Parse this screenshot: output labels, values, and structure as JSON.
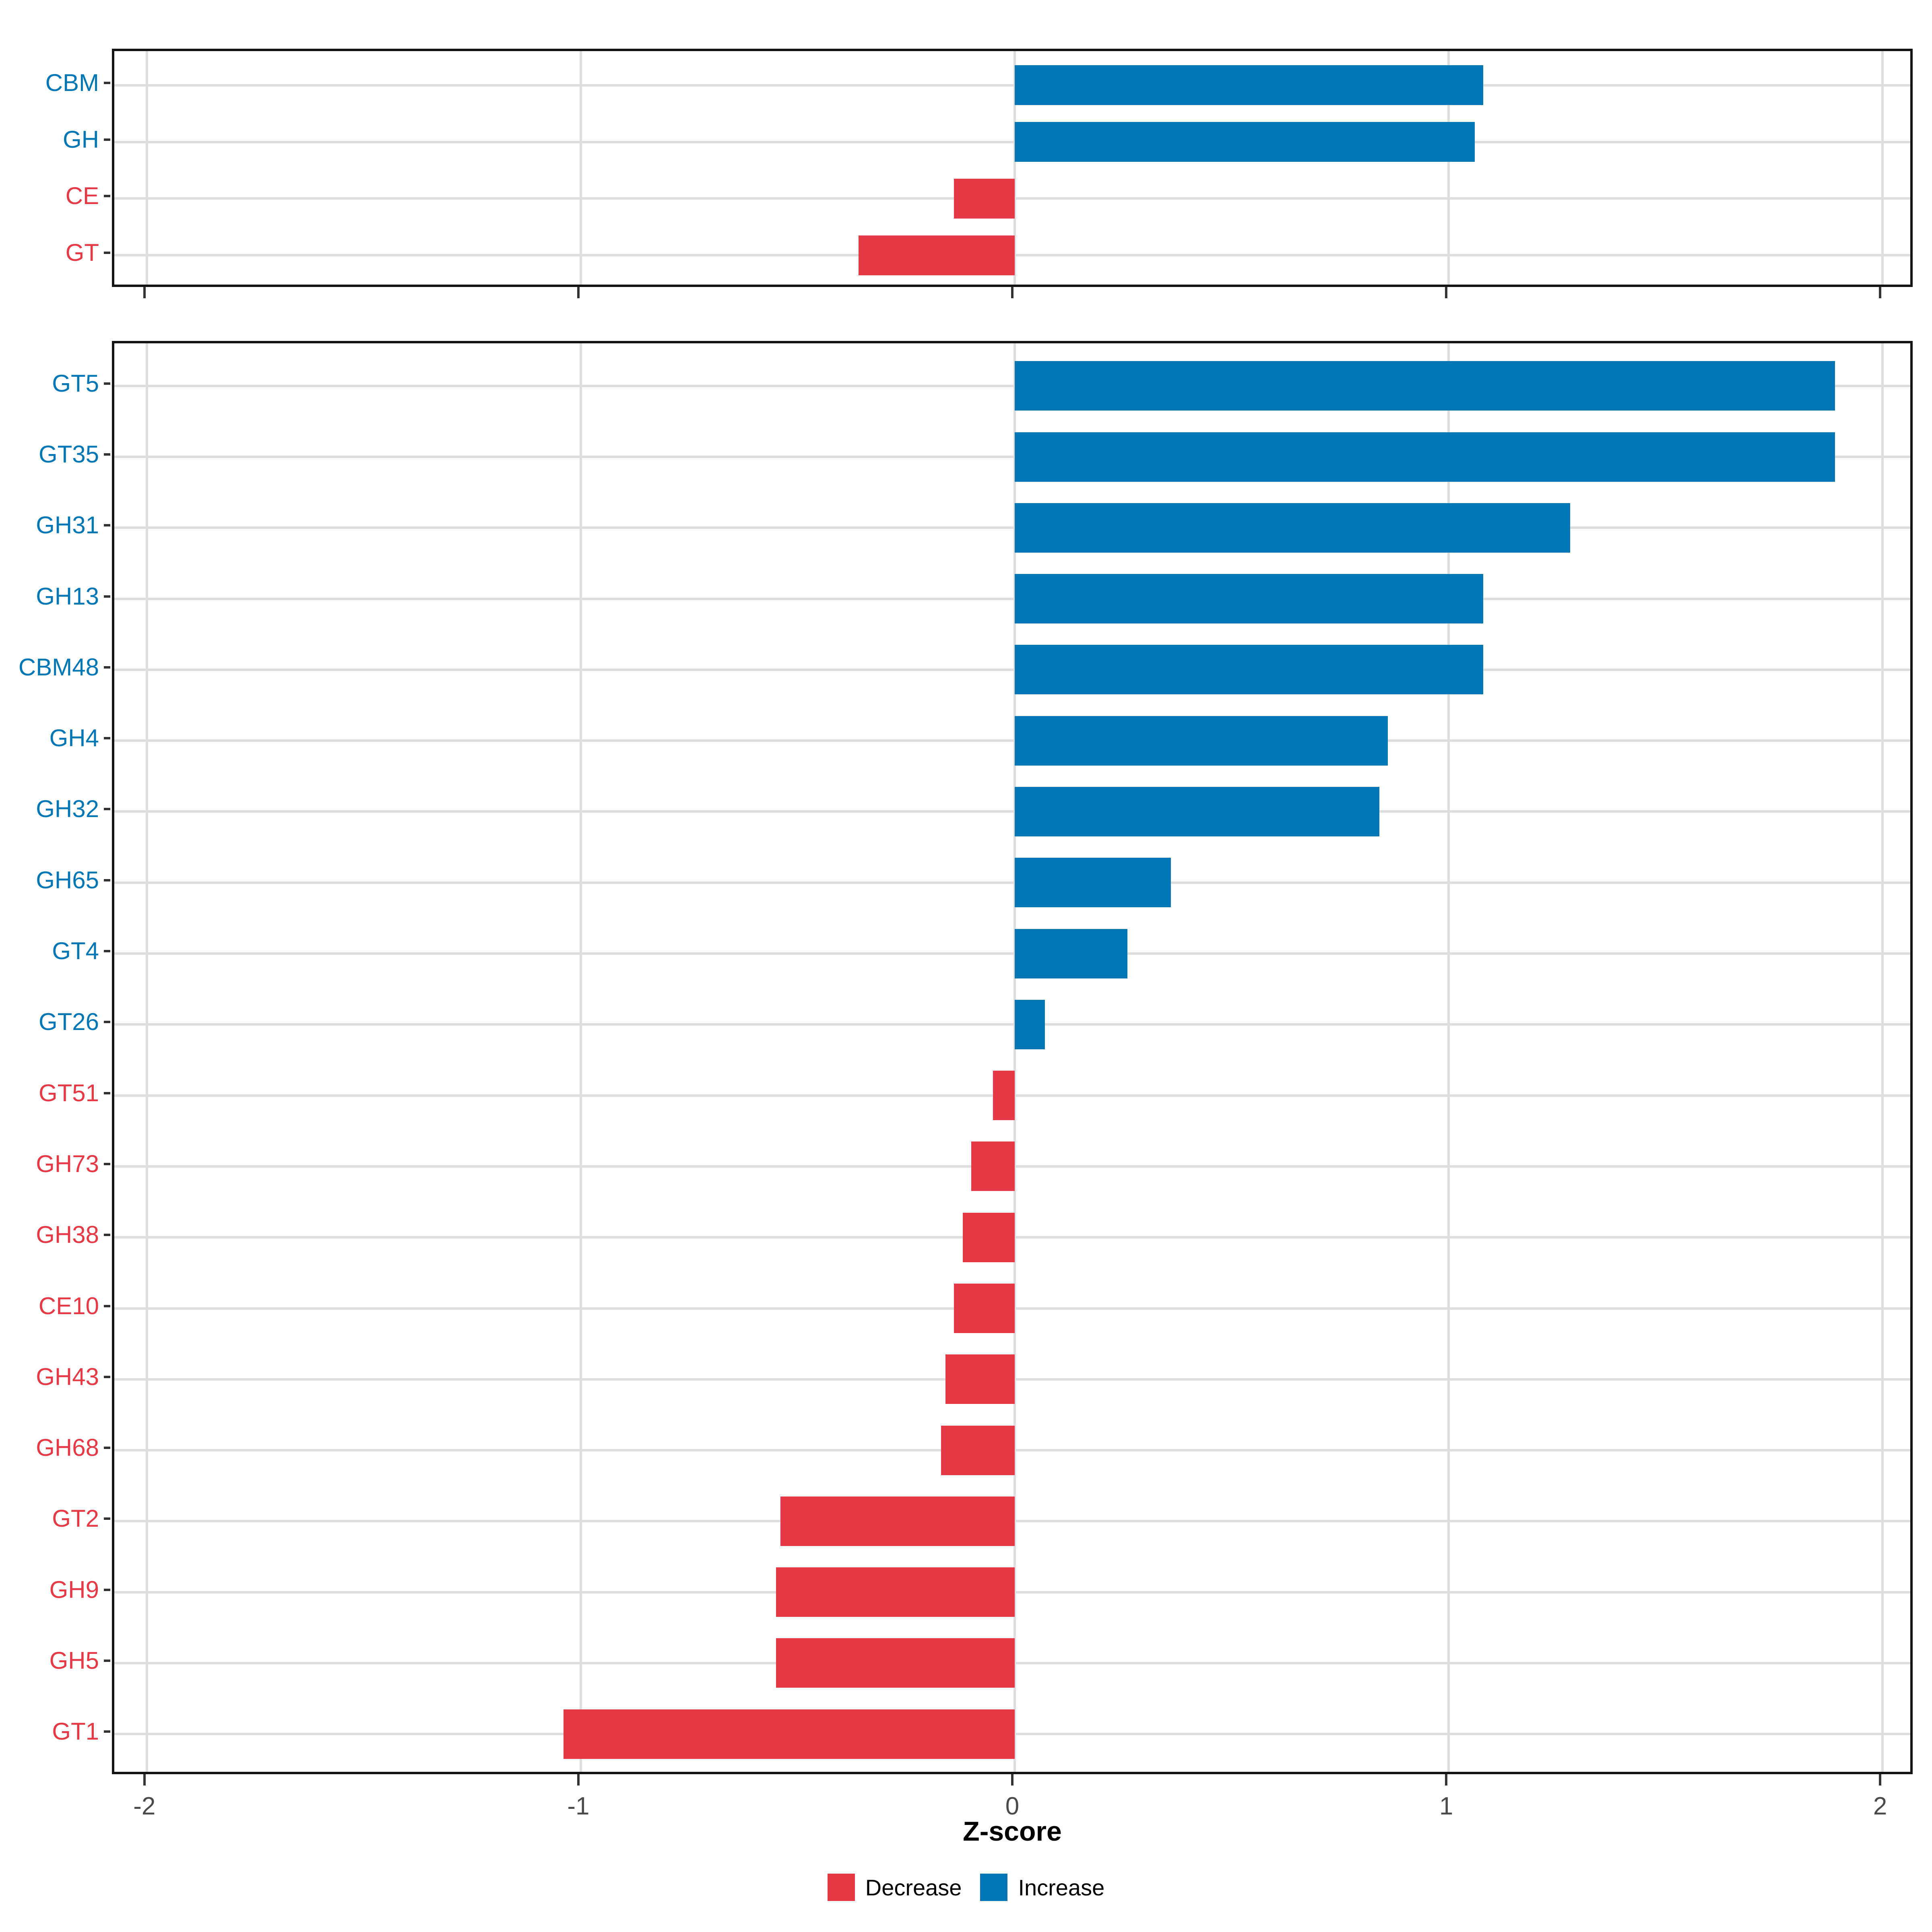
{
  "chart_data": [
    {
      "type": "bar",
      "orientation": "horizontal",
      "panel": "top",
      "title": "",
      "categories": [
        "CBM",
        "GH",
        "CE",
        "GT"
      ],
      "values": [
        1.08,
        1.06,
        -0.14,
        -0.36
      ],
      "xlim": [
        -2.075,
        2.075
      ],
      "x_ticks": [
        -2,
        -1,
        0,
        1,
        2
      ],
      "x_tick_labels": [
        "-2",
        "-1",
        "0",
        "1",
        "2"
      ],
      "show_x_tick_labels": false,
      "grid": "major",
      "bar_width_fraction": 0.7,
      "increase_color": "#0077B4",
      "decrease_color": "#E63946"
    },
    {
      "type": "bar",
      "orientation": "horizontal",
      "panel": "bottom",
      "title": "",
      "categories": [
        "GT5",
        "GT35",
        "GH31",
        "GH13",
        "CBM48",
        "GH4",
        "GH32",
        "GH65",
        "GT4",
        "GT26",
        "GT51",
        "GH73",
        "GH38",
        "CE10",
        "GH43",
        "GH68",
        "GT2",
        "GH9",
        "GH5",
        "GT1"
      ],
      "values": [
        1.89,
        1.89,
        1.28,
        1.08,
        1.08,
        0.86,
        0.84,
        0.36,
        0.26,
        0.07,
        -0.05,
        -0.1,
        -0.12,
        -0.14,
        -0.16,
        -0.17,
        -0.54,
        -0.55,
        -0.55,
        -1.04
      ],
      "xlim": [
        -2.075,
        2.075
      ],
      "x_ticks": [
        -2,
        -1,
        0,
        1,
        2
      ],
      "x_tick_labels": [
        "-2",
        "-1",
        "0",
        "1",
        "2"
      ],
      "show_x_tick_labels": true,
      "grid": "major",
      "bar_width_fraction": 0.7,
      "xlabel": "Z-score",
      "legend_position": "bottom",
      "legend": [
        {
          "label": "Decrease",
          "color": "#E63946"
        },
        {
          "label": "Increase",
          "color": "#0077B4"
        }
      ]
    }
  ],
  "colors": {
    "increase": "#0077B4",
    "decrease": "#E63946",
    "gridline": "#dedede",
    "panel_border": "#141414",
    "axis_text": "#4a4a4a",
    "tick_mark": "#333333"
  }
}
